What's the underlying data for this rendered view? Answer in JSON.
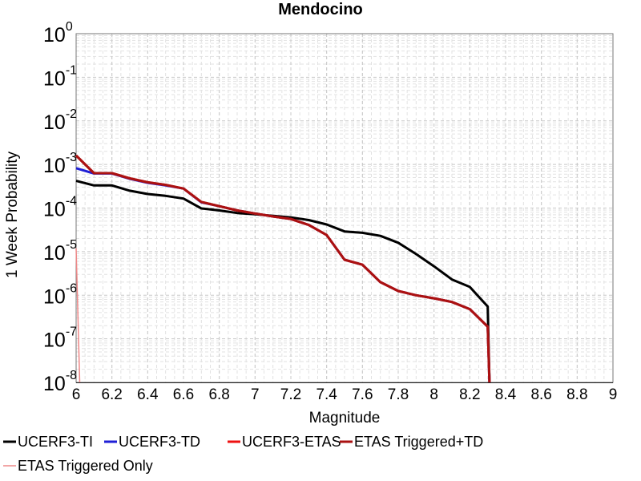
{
  "chart_data": {
    "type": "line",
    "title": "Mendocino",
    "xlabel": "Magnitude",
    "ylabel": "1 Week Probability",
    "x_ticks": [
      "6",
      "6.2",
      "6.4",
      "6.6",
      "6.8",
      "7",
      "7.2",
      "7.4",
      "7.6",
      "7.8",
      "8",
      "8.2",
      "8.4",
      "8.6",
      "8.8",
      "9"
    ],
    "y_ticks": [
      {
        "base": "10",
        "exp": "-8",
        "value": 1e-08
      },
      {
        "base": "10",
        "exp": "-7",
        "value": 1e-07
      },
      {
        "base": "10",
        "exp": "-6",
        "value": 1e-06
      },
      {
        "base": "10",
        "exp": "-5",
        "value": 1e-05
      },
      {
        "base": "10",
        "exp": "-4",
        "value": 0.0001
      },
      {
        "base": "10",
        "exp": "-3",
        "value": 0.001
      },
      {
        "base": "10",
        "exp": "-2",
        "value": 0.01
      },
      {
        "base": "10",
        "exp": "-1",
        "value": 0.1
      },
      {
        "base": "10",
        "exp": "0",
        "value": 1
      }
    ],
    "xlim": [
      6,
      9
    ],
    "ylim": [
      1e-08,
      1
    ],
    "yscale": "log",
    "grid": true,
    "legend_position": "bottom",
    "series": [
      {
        "name": "UCERF3-TI",
        "color": "#000000",
        "x": [
          6.0,
          6.1,
          6.2,
          6.3,
          6.4,
          6.5,
          6.6,
          6.7,
          6.8,
          6.9,
          7.0,
          7.1,
          7.2,
          7.3,
          7.4,
          7.5,
          7.6,
          7.7,
          7.8,
          7.9,
          8.0,
          8.1,
          8.2,
          8.3,
          8.31
        ],
        "y": [
          0.00042,
          0.00033,
          0.00033,
          0.00025,
          0.00021,
          0.00019,
          0.000165,
          9.8e-05,
          8.8e-05,
          7.7e-05,
          7.2e-05,
          6.6e-05,
          6.1e-05,
          5.3e-05,
          4.2e-05,
          2.9e-05,
          2.7e-05,
          2.3e-05,
          1.6e-05,
          8.8e-06,
          4.6e-06,
          2.3e-06,
          1.55e-06,
          5.5e-07,
          1e-08
        ]
      },
      {
        "name": "UCERF3-TD",
        "color": "#1f1fd6",
        "x": [
          6.0,
          6.1,
          6.2,
          6.3,
          6.4,
          6.5,
          6.6,
          6.7,
          6.8,
          6.9,
          7.0,
          7.1,
          7.2,
          7.3,
          7.4,
          7.5,
          7.6,
          7.7,
          7.8,
          7.9,
          8.0,
          8.1,
          8.2,
          8.3,
          8.31
        ],
        "y": [
          0.00082,
          0.00062,
          0.00062,
          0.00047,
          0.00038,
          0.00033,
          0.00028,
          0.000135,
          0.00011,
          8.8e-05,
          7.5e-05,
          6.4e-05,
          5.6e-05,
          4.1e-05,
          2.4e-05,
          6.5e-06,
          5e-06,
          2e-06,
          1.25e-06,
          1e-06,
          8.5e-07,
          7e-07,
          4.8e-07,
          1.9e-07,
          1e-08
        ]
      },
      {
        "name": "UCERF3-ETAS",
        "color": "#ee1111",
        "x": [
          6.0,
          6.1,
          6.2,
          6.3,
          6.4,
          6.5,
          6.6,
          6.7,
          6.8,
          6.9,
          7.0,
          7.1,
          7.2,
          7.3,
          7.4,
          7.5,
          7.6,
          7.7,
          7.8,
          7.9,
          8.0,
          8.1,
          8.2,
          8.3,
          8.31
        ],
        "y": [
          0.0016,
          0.00063,
          0.00063,
          0.00048,
          0.00039,
          0.00034,
          0.00028,
          0.000138,
          0.00011,
          8.8e-05,
          7.5e-05,
          6.4e-05,
          5.6e-05,
          4.1e-05,
          2.4e-05,
          6.5e-06,
          5e-06,
          2e-06,
          1.25e-06,
          1e-06,
          8.5e-07,
          7e-07,
          4.8e-07,
          1.9e-07,
          1e-08
        ]
      },
      {
        "name": "ETAS Triggered+TD",
        "color": "#aa1111",
        "x": [
          6.0,
          6.1,
          6.2,
          6.3,
          6.4,
          6.5,
          6.6,
          6.7,
          6.8,
          6.9,
          7.0,
          7.1,
          7.2,
          7.3,
          7.4,
          7.5,
          7.6,
          7.7,
          7.8,
          7.9,
          8.0,
          8.1,
          8.2,
          8.3,
          8.31
        ],
        "y": [
          0.0016,
          0.00063,
          0.00063,
          0.00048,
          0.00039,
          0.00034,
          0.00028,
          0.000138,
          0.00011,
          8.8e-05,
          7.5e-05,
          6.4e-05,
          5.6e-05,
          4.1e-05,
          2.4e-05,
          6.5e-06,
          5e-06,
          2e-06,
          1.25e-06,
          1e-06,
          8.5e-07,
          7e-07,
          4.8e-07,
          1.9e-07,
          1e-08
        ]
      },
      {
        "name": "ETAS Triggered Only",
        "color": "#ee8888",
        "x": [
          6.0,
          6.02
        ],
        "y": [
          1.2e-05,
          1e-08
        ]
      }
    ]
  }
}
